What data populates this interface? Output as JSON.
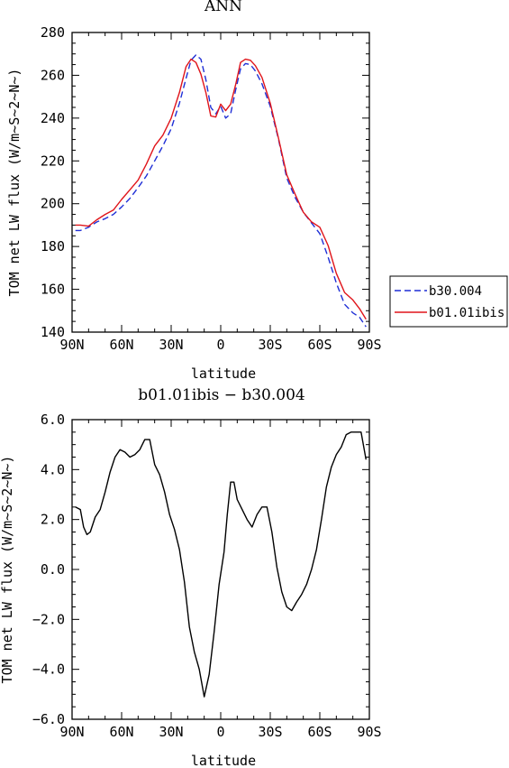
{
  "chart_data": [
    {
      "type": "line",
      "title": "ANN",
      "xlabel": "latitude",
      "ylabel": "TOM net LW flux (W/m~S~2~N~)",
      "xlim": [
        90,
        -90
      ],
      "ylim": [
        140,
        280
      ],
      "x_ticks": [
        {
          "value": 90,
          "label": "90N"
        },
        {
          "value": 60,
          "label": "60N"
        },
        {
          "value": 30,
          "label": "30N"
        },
        {
          "value": 0,
          "label": "0"
        },
        {
          "value": -30,
          "label": "30S"
        },
        {
          "value": -60,
          "label": "60S"
        },
        {
          "value": -90,
          "label": "90S"
        }
      ],
      "y_ticks": [
        {
          "value": 140,
          "label": "140"
        },
        {
          "value": 160,
          "label": "160"
        },
        {
          "value": 180,
          "label": "180"
        },
        {
          "value": 200,
          "label": "200"
        },
        {
          "value": 220,
          "label": "220"
        },
        {
          "value": 240,
          "label": "240"
        },
        {
          "value": 260,
          "label": "260"
        },
        {
          "value": 280,
          "label": "280"
        }
      ],
      "legend_position": "outside-right",
      "series": [
        {
          "name": "b30.004",
          "color": "#1f2fd6",
          "dash": "dashed",
          "x": [
            88,
            85,
            80,
            75,
            70,
            65,
            60,
            55,
            50,
            45,
            40,
            35,
            30,
            25,
            21,
            18,
            15,
            12,
            9,
            6,
            3,
            0,
            -3,
            -6,
            -9,
            -12,
            -15,
            -18,
            -21,
            -25,
            -30,
            -35,
            -40,
            -45,
            -50,
            -55,
            -60,
            -65,
            -70,
            -75,
            -80,
            -84,
            -88
          ],
          "y": [
            187.5,
            187.5,
            189,
            191.5,
            193,
            195,
            198.5,
            202.5,
            207.5,
            213,
            220,
            227,
            235,
            247,
            258.5,
            267,
            269.5,
            267.5,
            258,
            245,
            242,
            245.5,
            240,
            242,
            253,
            263,
            265.5,
            265,
            262,
            256,
            245.5,
            230,
            212,
            203,
            196,
            191,
            186,
            175,
            163,
            153,
            149,
            147,
            142.5
          ]
        },
        {
          "name": "b01.01ibis",
          "color": "#e0141a",
          "dash": "solid",
          "x": [
            88,
            85,
            80,
            75,
            70,
            65,
            60,
            55,
            50,
            45,
            40,
            35,
            30,
            25,
            21,
            18,
            15,
            12,
            9,
            6,
            3,
            0,
            -3,
            -6,
            -9,
            -12,
            -15,
            -18,
            -21,
            -25,
            -30,
            -35,
            -40,
            -45,
            -50,
            -55,
            -60,
            -65,
            -70,
            -75,
            -80,
            -84,
            -88
          ],
          "y": [
            190,
            190,
            189.5,
            192.5,
            195,
            197,
            202,
            206.5,
            211,
            218.5,
            227,
            232,
            240,
            252,
            264,
            267.5,
            266,
            260.5,
            252,
            241,
            240.5,
            246.5,
            243.5,
            246.5,
            255.5,
            266,
            267.5,
            267,
            264.5,
            259,
            247,
            230.5,
            213.5,
            204.5,
            196,
            191.5,
            189,
            180.5,
            167.5,
            158.5,
            155,
            151,
            146
          ]
        }
      ]
    },
    {
      "type": "line",
      "title": "b01.01ibis − b30.004",
      "xlabel": "latitude",
      "ylabel": "TOM net LW flux (W/m~S~2~N~)",
      "xlim": [
        90,
        -90
      ],
      "ylim": [
        -6,
        6
      ],
      "x_ticks": [
        {
          "value": 90,
          "label": "90N"
        },
        {
          "value": 60,
          "label": "60N"
        },
        {
          "value": 30,
          "label": "30N"
        },
        {
          "value": 0,
          "label": "0"
        },
        {
          "value": -30,
          "label": "30S"
        },
        {
          "value": -60,
          "label": "60S"
        },
        {
          "value": -90,
          "label": "90S"
        }
      ],
      "y_ticks": [
        {
          "value": 6,
          "label": "6.0"
        },
        {
          "value": 4,
          "label": "4.0"
        },
        {
          "value": 2,
          "label": "2.0"
        },
        {
          "value": 0,
          "label": "0.0"
        },
        {
          "value": -2,
          "label": "−2.0"
        },
        {
          "value": -4,
          "label": "−4.0"
        },
        {
          "value": -6,
          "label": "−6.0"
        }
      ],
      "series": [
        {
          "name": "",
          "color": "#000000",
          "dash": "solid",
          "x": [
            88,
            85,
            83,
            81,
            79,
            76,
            73,
            70,
            67,
            64,
            61,
            58,
            55,
            52,
            49,
            46,
            43,
            40,
            37,
            34,
            31,
            28,
            25,
            22,
            19,
            16,
            13,
            10,
            7,
            4,
            1,
            -2,
            -4,
            -6,
            -8,
            -10,
            -13,
            -16,
            -19,
            -22,
            -25,
            -28,
            -31,
            -34,
            -37,
            -40,
            -43,
            -46,
            -49,
            -52,
            -55,
            -58,
            -61,
            -64,
            -67,
            -70,
            -73,
            -76,
            -79,
            -82,
            -85,
            -88
          ],
          "y": [
            2.5,
            2.4,
            1.7,
            1.4,
            1.5,
            2.1,
            2.4,
            3.1,
            3.9,
            4.5,
            4.8,
            4.7,
            4.5,
            4.6,
            4.8,
            5.2,
            5.2,
            4.2,
            3.8,
            3.1,
            2.2,
            1.6,
            0.8,
            -0.5,
            -2.3,
            -3.3,
            -4.0,
            -5.1,
            -4.2,
            -2.5,
            -0.6,
            0.7,
            2.2,
            3.5,
            3.5,
            2.8,
            2.4,
            2.0,
            1.7,
            2.2,
            2.5,
            2.5,
            1.5,
            0.1,
            -0.9,
            -1.5,
            -1.65,
            -1.3,
            -1.0,
            -0.6,
            0.0,
            0.8,
            2.0,
            3.3,
            4.1,
            4.6,
            4.9,
            5.4,
            5.5,
            5.5,
            5.5,
            4.4
          ]
        }
      ]
    }
  ]
}
